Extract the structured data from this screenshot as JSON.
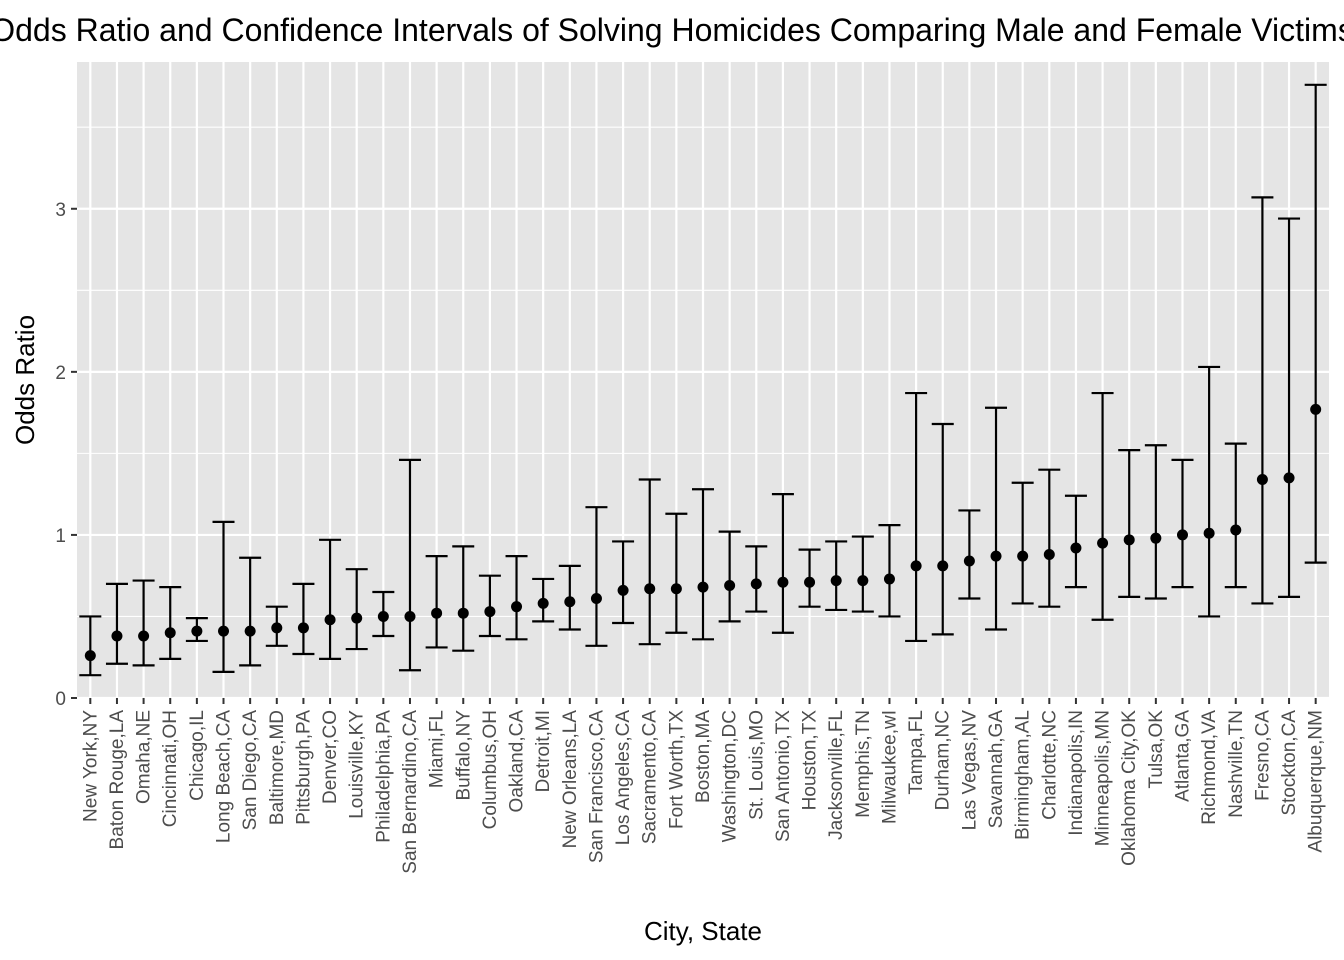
{
  "chart_data": {
    "type": "errorbar",
    "title": "Odds Ratio and Confidence Intervals of Solving Homicides Comparing Male and Female Victims",
    "xlabel": "City, State",
    "ylabel": "Odds Ratio",
    "ylim": [
      0,
      3.9
    ],
    "y_ticks": [
      0,
      1,
      2,
      3
    ],
    "y_tick_labels": [
      "0",
      "1",
      "2",
      "3"
    ],
    "grid": true,
    "background": "#e5e5e5",
    "grid_color": "#ffffff",
    "point_color": "#000000",
    "categories": [
      "New York,NY",
      "Baton Rouge,LA",
      "Omaha,NE",
      "Cincinnati,OH",
      "Chicago,IL",
      "Long Beach,CA",
      "San Diego,CA",
      "Baltimore,MD",
      "Pittsburgh,PA",
      "Denver,CO",
      "Louisville,KY",
      "Philadelphia,PA",
      "San Bernardino,CA",
      "Miami,FL",
      "Buffalo,NY",
      "Columbus,OH",
      "Oakland,CA",
      "Detroit,MI",
      "New Orleans,LA",
      "San Francisco,CA",
      "Los Angeles,CA",
      "Sacramento,CA",
      "Fort Worth,TX",
      "Boston,MA",
      "Washington,DC",
      "St. Louis,MO",
      "San Antonio,TX",
      "Houston,TX",
      "Jacksonville,FL",
      "Memphis,TN",
      "Milwaukee,wI",
      "Tampa,FL",
      "Durham,NC",
      "Las Vegas,NV",
      "Savannah,GA",
      "Birmingham,AL",
      "Charlotte,NC",
      "Indianapolis,IN",
      "Minneapolis,MN",
      "Oklahoma City,OK",
      "Tulsa,OK",
      "Atlanta,GA",
      "Richmond,VA",
      "Nashville,TN",
      "Fresno,CA",
      "Stockton,CA",
      "Albuquerque,NM"
    ],
    "estimates": [
      0.26,
      0.38,
      0.38,
      0.4,
      0.41,
      0.41,
      0.41,
      0.43,
      0.43,
      0.48,
      0.49,
      0.5,
      0.5,
      0.52,
      0.52,
      0.53,
      0.56,
      0.58,
      0.59,
      0.61,
      0.66,
      0.67,
      0.67,
      0.68,
      0.69,
      0.7,
      0.71,
      0.71,
      0.72,
      0.72,
      0.73,
      0.81,
      0.81,
      0.84,
      0.87,
      0.87,
      0.88,
      0.92,
      0.95,
      0.97,
      0.98,
      1.0,
      1.01,
      1.03,
      1.34,
      1.35,
      1.77
    ],
    "ci_lower": [
      0.14,
      0.21,
      0.2,
      0.24,
      0.35,
      0.16,
      0.2,
      0.32,
      0.27,
      0.24,
      0.3,
      0.38,
      0.17,
      0.31,
      0.29,
      0.38,
      0.36,
      0.47,
      0.42,
      0.32,
      0.46,
      0.33,
      0.4,
      0.36,
      0.47,
      0.53,
      0.4,
      0.56,
      0.54,
      0.53,
      0.5,
      0.35,
      0.39,
      0.61,
      0.42,
      0.58,
      0.56,
      0.68,
      0.48,
      0.62,
      0.61,
      0.68,
      0.5,
      0.68,
      0.58,
      0.62,
      0.83
    ],
    "ci_upper": [
      0.5,
      0.7,
      0.72,
      0.68,
      0.49,
      1.08,
      0.86,
      0.56,
      0.7,
      0.97,
      0.79,
      0.65,
      1.46,
      0.87,
      0.93,
      0.75,
      0.87,
      0.73,
      0.81,
      1.17,
      0.96,
      1.34,
      1.13,
      1.28,
      1.02,
      0.93,
      1.25,
      0.91,
      0.96,
      0.99,
      1.06,
      1.87,
      1.68,
      1.15,
      1.78,
      1.32,
      1.4,
      1.24,
      1.87,
      1.52,
      1.55,
      1.46,
      2.03,
      1.56,
      3.07,
      2.94,
      3.76
    ]
  }
}
